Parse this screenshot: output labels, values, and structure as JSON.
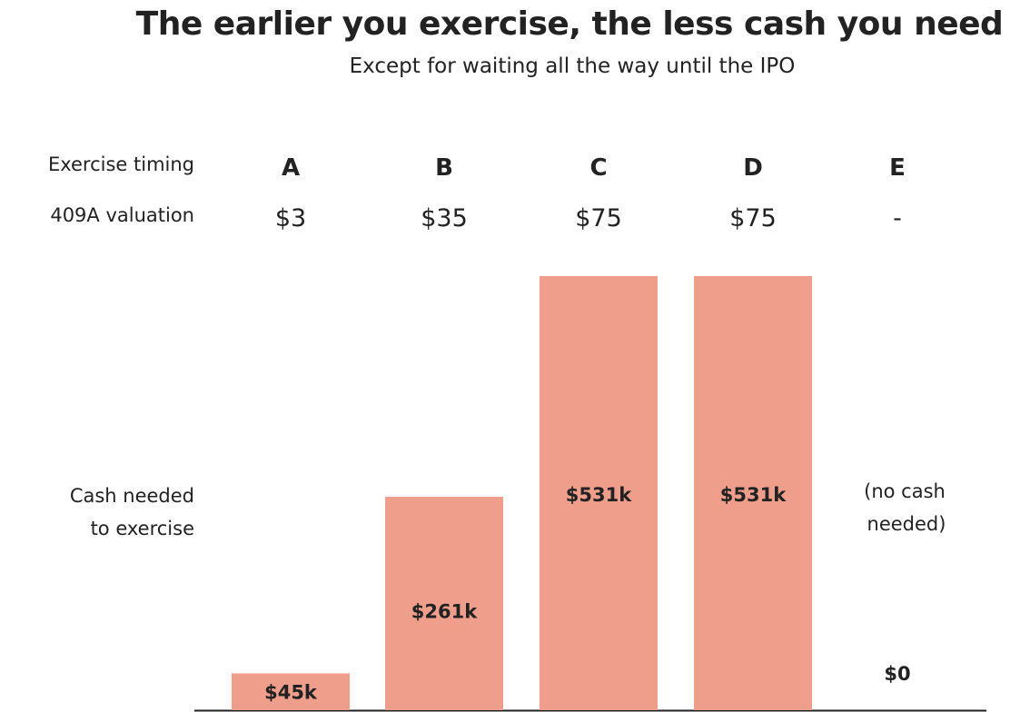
{
  "chart_data": {
    "type": "bar",
    "title": "The earlier you exercise, the less cash you need",
    "subtitle": "Except for waiting all the way until the IPO",
    "row_labels": {
      "timing": "Exercise timing",
      "valuation": "409A valuation",
      "cash_line1": "Cash needed",
      "cash_line2": "to exercise"
    },
    "categories": [
      "A",
      "B",
      "C",
      "D",
      "E"
    ],
    "valuations": [
      "$3",
      "$35",
      "$75",
      "$75",
      "-"
    ],
    "values": [
      45,
      261,
      531,
      531,
      0
    ],
    "value_labels": [
      "$45k",
      "$261k",
      "$531k",
      "$531k",
      "$0"
    ],
    "unit": "thousands of USD",
    "no_cash_note": [
      "(no cash",
      "needed)"
    ],
    "ylim": [
      0,
      531
    ],
    "grid": false,
    "legend": "none",
    "bar_color": "#f09e8c",
    "text_color": "#222222",
    "axis_color": "#222222"
  }
}
